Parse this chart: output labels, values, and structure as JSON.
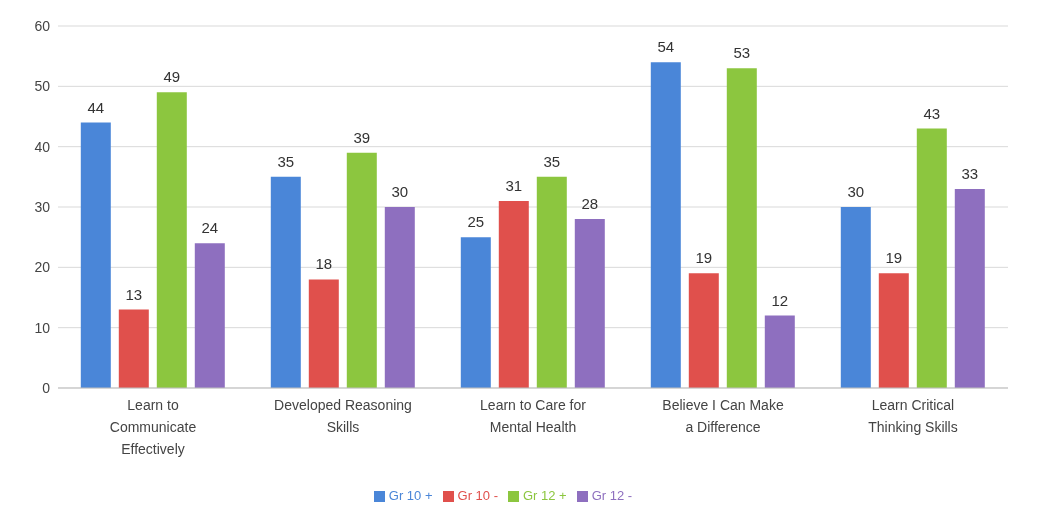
{
  "chart_data": {
    "type": "bar",
    "categories": [
      "Learn to Communicate Effectively",
      "Developed Reasoning Skills",
      "Learn to Care for Mental Health",
      "Believe I Can Make a Difference",
      "Learn Critical Thinking Skills"
    ],
    "series": [
      {
        "name": "Gr 10 +",
        "color": "#4a86d8",
        "values": [
          44,
          35,
          25,
          54,
          30
        ]
      },
      {
        "name": "Gr 10 -",
        "color": "#e0504c",
        "values": [
          13,
          18,
          31,
          19,
          19
        ]
      },
      {
        "name": "Gr 12 +",
        "color": "#8cc63f",
        "values": [
          49,
          39,
          35,
          53,
          43
        ]
      },
      {
        "name": "Gr 12 -",
        "color": "#8e6fbf",
        "values": [
          24,
          30,
          28,
          12,
          33
        ]
      }
    ],
    "ylim": [
      0,
      60
    ],
    "yticks": [
      0,
      10,
      20,
      30,
      40,
      50,
      60
    ],
    "grid": "y",
    "legend": "bottom",
    "data_labels": true
  }
}
